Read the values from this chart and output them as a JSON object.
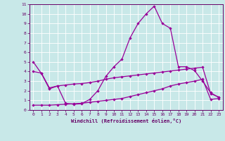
{
  "xlabel": "Windchill (Refroidissement éolien,°C)",
  "background_color": "#c8e8e8",
  "grid_color": "#ffffff",
  "line_color": "#990099",
  "ylim": [
    0,
    11
  ],
  "xlim": [
    -0.5,
    23.5
  ],
  "yticks": [
    0,
    1,
    2,
    3,
    4,
    5,
    6,
    7,
    8,
    9,
    10,
    11
  ],
  "xticks": [
    0,
    1,
    2,
    3,
    4,
    5,
    6,
    7,
    8,
    9,
    10,
    11,
    12,
    13,
    14,
    15,
    16,
    17,
    18,
    19,
    20,
    21,
    22,
    23
  ],
  "line1_x": [
    0,
    1,
    2,
    3,
    4,
    5,
    6,
    7,
    8,
    9,
    10,
    11,
    12,
    13,
    14,
    15,
    16,
    17,
    18,
    19,
    20,
    21,
    22,
    23
  ],
  "line1_y": [
    5.0,
    3.8,
    2.2,
    2.5,
    0.7,
    0.6,
    0.65,
    1.1,
    2.0,
    3.5,
    4.5,
    5.3,
    7.5,
    9.0,
    10.0,
    10.8,
    9.0,
    8.5,
    4.5,
    4.5,
    4.1,
    3.0,
    1.8,
    1.3
  ],
  "line2_x": [
    0,
    1,
    2,
    3,
    4,
    5,
    6,
    7,
    8,
    9,
    10,
    11,
    12,
    13,
    14,
    15,
    16,
    17,
    18,
    19,
    20,
    21,
    22,
    23
  ],
  "line2_y": [
    4.0,
    3.85,
    2.3,
    2.5,
    2.6,
    2.7,
    2.75,
    2.85,
    3.0,
    3.2,
    3.35,
    3.45,
    3.55,
    3.65,
    3.75,
    3.85,
    3.95,
    4.05,
    4.15,
    4.25,
    4.35,
    4.45,
    1.7,
    1.35
  ],
  "line3_x": [
    0,
    1,
    2,
    3,
    4,
    5,
    6,
    7,
    8,
    9,
    10,
    11,
    12,
    13,
    14,
    15,
    16,
    17,
    18,
    19,
    20,
    21,
    22,
    23
  ],
  "line3_y": [
    0.5,
    0.5,
    0.5,
    0.55,
    0.6,
    0.65,
    0.7,
    0.8,
    0.9,
    1.0,
    1.1,
    1.2,
    1.4,
    1.6,
    1.8,
    2.0,
    2.2,
    2.5,
    2.7,
    2.85,
    3.0,
    3.2,
    1.1,
    1.2
  ]
}
